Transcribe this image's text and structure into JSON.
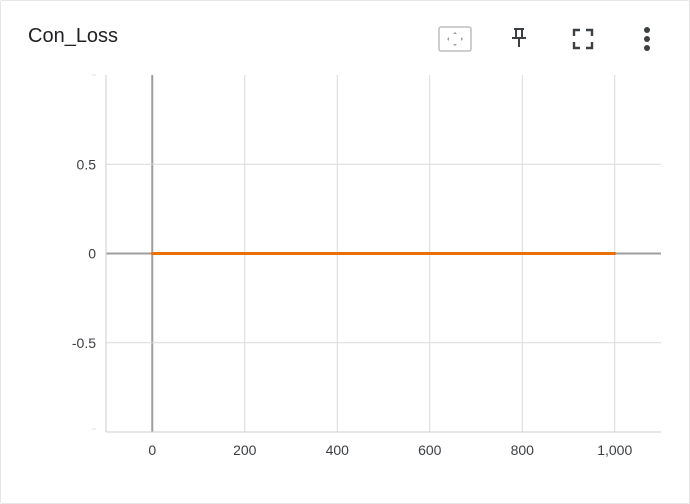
{
  "card": {
    "title": "Con_Loss"
  },
  "toolbar": {
    "icons": [
      "fit-domain-icon",
      "pin-icon",
      "fullscreen-icon",
      "more-vert-icon"
    ]
  },
  "colors": {
    "series": "#e8710a",
    "grid": "#d9d9d9",
    "axis": "#9e9e9e"
  },
  "chart_data": {
    "type": "line",
    "title": "",
    "xlabel": "",
    "ylabel": "",
    "xlim": [
      -100,
      1100
    ],
    "ylim": [
      -1,
      1
    ],
    "x_ticks": [
      0,
      200,
      400,
      600,
      800,
      1000
    ],
    "x_tick_labels": [
      "0",
      "200",
      "400",
      "600",
      "800",
      "1,000"
    ],
    "y_ticks": [
      0.5,
      0,
      -0.5
    ],
    "y_tick_labels": [
      "0.5",
      "0",
      "-0.5"
    ],
    "grid": true,
    "series": [
      {
        "x": [
          0,
          1000
        ],
        "y": [
          0,
          0
        ]
      }
    ]
  }
}
